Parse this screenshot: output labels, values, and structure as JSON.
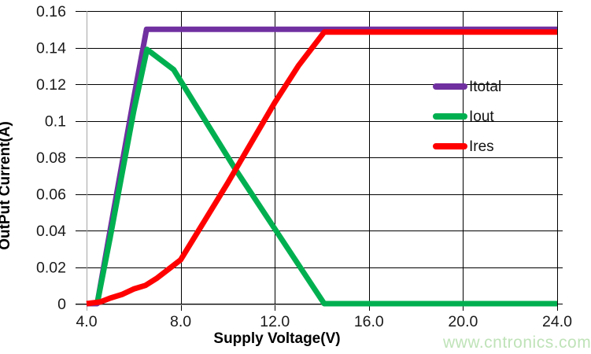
{
  "chart_data": {
    "type": "line",
    "title": "",
    "xlabel": "Supply Voltage(V)",
    "ylabel": "OutPut Current(A)",
    "xlim": [
      4.0,
      24.0
    ],
    "ylim": [
      0,
      0.16
    ],
    "x_ticks": [
      {
        "value": 4.0,
        "label": "4.0"
      },
      {
        "value": 8.0,
        "label": "8.0"
      },
      {
        "value": 12.0,
        "label": "12.0"
      },
      {
        "value": 16.0,
        "label": "16.0"
      },
      {
        "value": 20.0,
        "label": "20.0"
      },
      {
        "value": 24.0,
        "label": "24.0"
      }
    ],
    "y_ticks": [
      {
        "value": 0.0,
        "label": "0"
      },
      {
        "value": 0.02,
        "label": "0.02"
      },
      {
        "value": 0.04,
        "label": "0.04"
      },
      {
        "value": 0.06,
        "label": "0.06"
      },
      {
        "value": 0.08,
        "label": "0.08"
      },
      {
        "value": 0.1,
        "label": "0.1"
      },
      {
        "value": 0.12,
        "label": "0.12"
      },
      {
        "value": 0.14,
        "label": "0.14"
      },
      {
        "value": 0.16,
        "label": "0.16"
      }
    ],
    "grid": true,
    "legend_position": "inside-right",
    "series": [
      {
        "name": "Itotal",
        "color": "#7030A0",
        "points": [
          [
            4.0,
            0
          ],
          [
            4.45,
            0
          ],
          [
            5.0,
            0.04
          ],
          [
            6.0,
            0.112
          ],
          [
            6.55,
            0.15
          ],
          [
            24.0,
            0.15
          ]
        ]
      },
      {
        "name": "Iout",
        "color": "#00B050",
        "points": [
          [
            4.45,
            0
          ],
          [
            5.0,
            0.036
          ],
          [
            6.0,
            0.105
          ],
          [
            6.57,
            0.139
          ],
          [
            7.7,
            0.128
          ],
          [
            10.3,
            0.074
          ],
          [
            14.1,
            0
          ],
          [
            24.0,
            0
          ]
        ]
      },
      {
        "name": "Ires",
        "color": "#FF0000",
        "points": [
          [
            4.0,
            0
          ],
          [
            4.6,
            0.001
          ],
          [
            5.0,
            0.003
          ],
          [
            5.5,
            0.005
          ],
          [
            6.0,
            0.008
          ],
          [
            6.5,
            0.01
          ],
          [
            7.0,
            0.014
          ],
          [
            7.5,
            0.019
          ],
          [
            8.0,
            0.024
          ],
          [
            9.0,
            0.045
          ],
          [
            10.0,
            0.066
          ],
          [
            11.0,
            0.088
          ],
          [
            12.0,
            0.11
          ],
          [
            13.0,
            0.13
          ],
          [
            14.1,
            0.1485
          ],
          [
            24.0,
            0.1485
          ]
        ]
      }
    ]
  },
  "watermark": {
    "text": "www.cntronics.com",
    "color": "#bfe3b8"
  },
  "style_colors": {
    "gridline": "#000000",
    "axis_line": "#a6a6a6",
    "tick_label": "#1a1a1a"
  }
}
